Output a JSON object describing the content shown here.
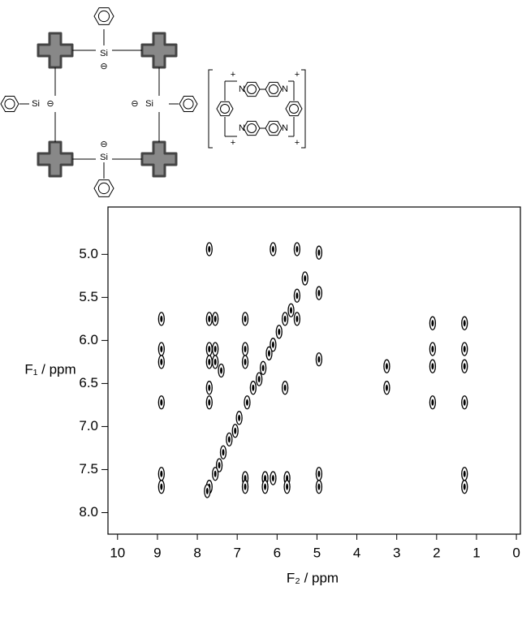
{
  "chart_data": {
    "type": "scatter",
    "x_label": "F₂ / ppm",
    "y_label": "F₁ / ppm",
    "xlim": [
      10.24,
      -0.1
    ],
    "xticks": [
      0,
      1,
      2,
      3,
      4,
      5,
      6,
      7,
      8,
      9,
      10
    ],
    "ylim": [
      4.45,
      8.25
    ],
    "yticks": [
      {
        "value": 5,
        "label": "5.0"
      },
      {
        "value": 5.5,
        "label": "5.5"
      },
      {
        "value": 6,
        "label": "6.0"
      },
      {
        "value": 6.5,
        "label": "6.5"
      },
      {
        "value": 7,
        "label": "7.0"
      },
      {
        "value": 7.5,
        "label": "7.5"
      },
      {
        "value": 8,
        "label": "8.0"
      }
    ],
    "color": "#000000",
    "x": [
      4.95,
      5.3,
      5.5,
      5.65,
      5.8,
      5.95,
      6.1,
      6.2,
      6.35,
      6.45,
      6.6,
      6.75,
      6.95,
      7.05,
      7.2,
      7.35,
      7.45,
      7.55,
      7.7,
      7.75,
      8.9,
      8.9,
      8.9,
      8.9,
      8.9,
      8.9,
      7.7,
      7.7,
      7.7,
      7.7,
      7.7,
      7.7,
      7.55,
      7.55,
      7.55,
      6.8,
      6.8,
      6.8,
      6.8,
      6.8,
      6.1,
      6.1,
      6.3,
      6.3,
      5.75,
      5.75,
      5.5,
      5.5,
      4.95,
      4.95,
      4.95,
      4.95,
      3.25,
      3.25,
      2.1,
      2.1,
      2.1,
      2.1,
      1.3,
      1.3,
      1.3,
      1.3,
      1.3,
      1.3,
      5.8,
      7.4
    ],
    "values": [
      4.98,
      5.28,
      5.48,
      5.65,
      5.75,
      5.9,
      6.05,
      6.15,
      6.32,
      6.45,
      6.55,
      6.72,
      6.9,
      7.05,
      7.15,
      7.3,
      7.45,
      7.55,
      7.7,
      7.75,
      5.75,
      6.1,
      6.25,
      6.72,
      7.55,
      7.7,
      4.94,
      5.75,
      6.1,
      6.25,
      6.55,
      6.72,
      5.75,
      6.1,
      6.25,
      5.75,
      6.1,
      6.25,
      7.6,
      7.7,
      4.94,
      7.6,
      7.6,
      7.7,
      7.6,
      7.7,
      4.94,
      5.75,
      5.45,
      6.22,
      7.55,
      7.7,
      6.3,
      6.55,
      5.8,
      6.1,
      6.3,
      6.72,
      5.8,
      6.1,
      6.3,
      6.72,
      7.55,
      7.7,
      6.55,
      6.35
    ]
  },
  "structures": {
    "silyl_ring": {
      "atoms": [
        "Si",
        "Si",
        "Si",
        "Si"
      ],
      "charges": [
        "⊖",
        "⊖",
        "⊖",
        "⊖"
      ]
    },
    "cyclophane": {
      "atoms": [
        "N",
        "N",
        "N",
        "N"
      ],
      "charges": [
        "+",
        "+",
        "+",
        "+"
      ]
    }
  }
}
